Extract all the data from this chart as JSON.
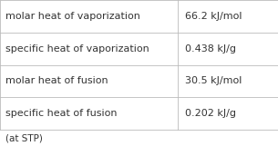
{
  "rows": [
    [
      "molar heat of vaporization",
      "66.2 kJ/mol"
    ],
    [
      "specific heat of vaporization",
      "0.438 kJ/g"
    ],
    [
      "molar heat of fusion",
      "30.5 kJ/mol"
    ],
    [
      "specific heat of fusion",
      "0.202 kJ/g"
    ]
  ],
  "footnote": "(at STP)",
  "bg_color": "#ffffff",
  "border_color": "#bbbbbb",
  "text_color": "#333333",
  "font_size": 8.0,
  "footnote_font_size": 7.5,
  "fig_width": 3.05,
  "fig_height": 1.61,
  "dpi": 100
}
